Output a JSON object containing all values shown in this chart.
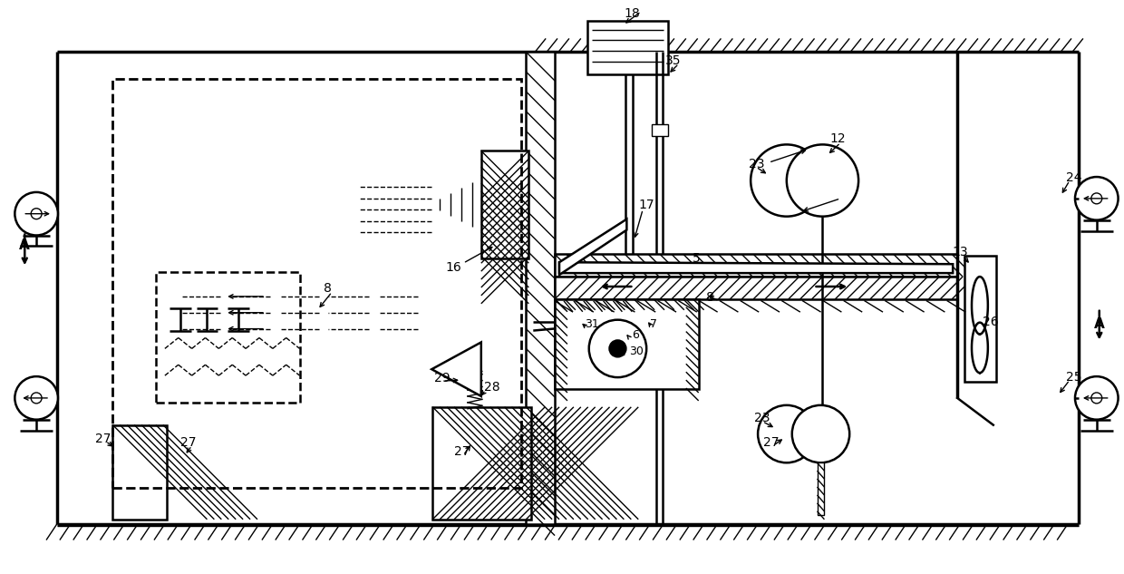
{
  "fig_width": 12.4,
  "fig_height": 6.33,
  "dpi": 100,
  "bg": "#ffffff",
  "lc": "#000000",
  "lw1": 1.0,
  "lw2": 1.8,
  "lw3": 2.5
}
